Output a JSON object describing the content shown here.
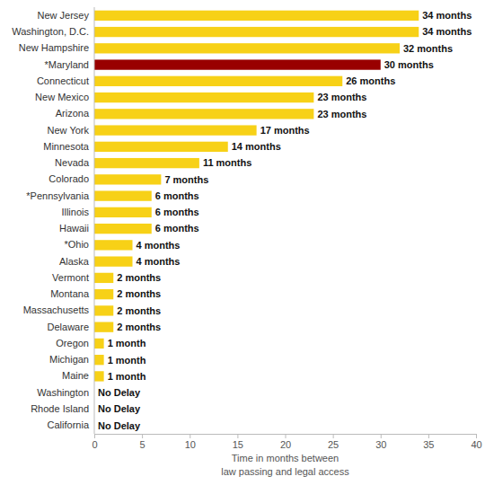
{
  "chart_data": {
    "type": "bar",
    "orientation": "horizontal",
    "categories": [
      "New Jersey",
      "Washington, D.C.",
      "New Hampshire",
      "*Maryland",
      "Connecticut",
      "New Mexico",
      "Arizona",
      "New York",
      "Minnesota",
      "Nevada",
      "Colorado",
      "*Pennsylvania",
      "Illinois",
      "Hawaii",
      "*Ohio",
      "Alaska",
      "Vermont",
      "Montana",
      "Massachusetts",
      "Delaware",
      "Oregon",
      "Michigan",
      "Maine",
      "Washington",
      "Rhode Island",
      "California"
    ],
    "values": [
      34,
      34,
      32,
      30,
      26,
      23,
      23,
      17,
      14,
      11,
      7,
      6,
      6,
      6,
      4,
      4,
      2,
      2,
      2,
      2,
      1,
      1,
      1,
      0,
      0,
      0
    ],
    "value_labels": [
      "34 months",
      "34 months",
      "32 months",
      "30 months",
      "26 months",
      "23 months",
      "23 months",
      "17 months",
      "14 months",
      "11 months",
      "7 months",
      "6 months",
      "6 months",
      "6 months",
      "4 months",
      "4 months",
      "2 months",
      "2 months",
      "2 months",
      "2 months",
      "1 month",
      "1 month",
      "1 month",
      "No Delay",
      "No Delay",
      "No Delay"
    ],
    "colors": [
      "#f7d117",
      "#f7d117",
      "#f7d117",
      "#990000",
      "#f7d117",
      "#f7d117",
      "#f7d117",
      "#f7d117",
      "#f7d117",
      "#f7d117",
      "#f7d117",
      "#f7d117",
      "#f7d117",
      "#f7d117",
      "#f7d117",
      "#f7d117",
      "#f7d117",
      "#f7d117",
      "#f7d117",
      "#f7d117",
      "#f7d117",
      "#f7d117",
      "#f7d117",
      "#f7d117",
      "#f7d117",
      "#f7d117"
    ],
    "x_label": "Time in months between\nlaw passing and legal access",
    "xlim": [
      0,
      40
    ],
    "xticks": [
      0,
      5,
      10,
      15,
      20,
      25,
      30,
      35,
      40
    ],
    "data_labels": true,
    "grid": false
  }
}
